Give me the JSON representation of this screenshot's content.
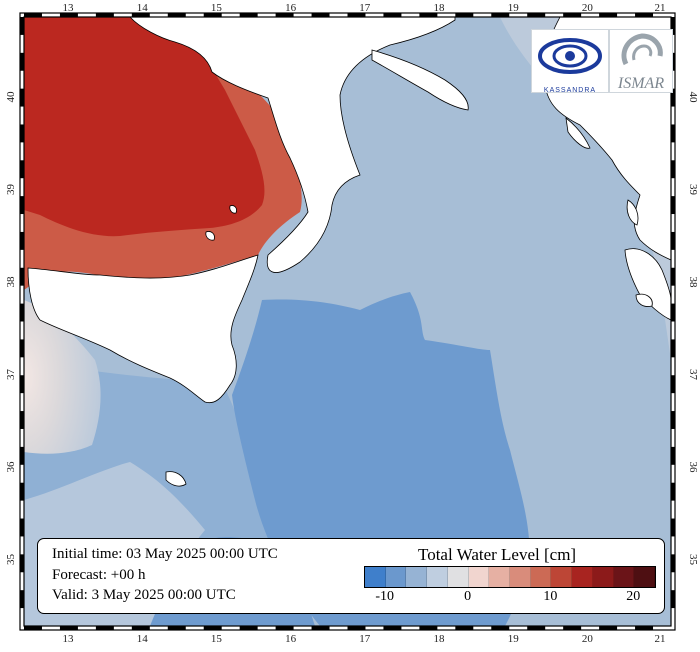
{
  "map": {
    "lon_ticks": [
      "13",
      "14",
      "15",
      "16",
      "17",
      "18",
      "19",
      "20",
      "21"
    ],
    "lat_ticks": [
      "35",
      "36",
      "37",
      "38",
      "39",
      "40"
    ],
    "colors": {
      "sea_light": "#a7bed6",
      "sea_mid": "#8fb0d4",
      "sea_dark": "#6e9bcf",
      "sea_near_zero": "#dad8db",
      "positive_dark": "#bb2820",
      "positive_mid": "#cc5b47",
      "land": "#ffffff",
      "frame": "#000000"
    }
  },
  "logos": {
    "left_icon": "eye-swirl-logo",
    "left_caption": "KASSANDRA",
    "right_icon": "ismar-logo",
    "right_caption": "ISMAR"
  },
  "info": {
    "initial_time": "Initial time: 03 May 2025 00:00 UTC",
    "forecast": "Forecast: +00 h",
    "valid": "Valid:  3 May 2025 00:00 UTC"
  },
  "legend": {
    "title": "Total Water Level [cm]",
    "colors": [
      "#3f7fcb",
      "#6b98cd",
      "#96b3d4",
      "#bfcee0",
      "#e0e0e2",
      "#f1d5cf",
      "#e6b0a3",
      "#d98c7b",
      "#cc6a55",
      "#bd4636",
      "#a82420",
      "#8c1a1a",
      "#6b1418",
      "#4e0f12"
    ],
    "labels": [
      {
        "text": "-10",
        "value": -10
      },
      {
        "text": "0",
        "value": 0
      },
      {
        "text": "10",
        "value": 10
      },
      {
        "text": "20",
        "value": 20
      }
    ],
    "range": [
      -12.5,
      22.5
    ]
  }
}
